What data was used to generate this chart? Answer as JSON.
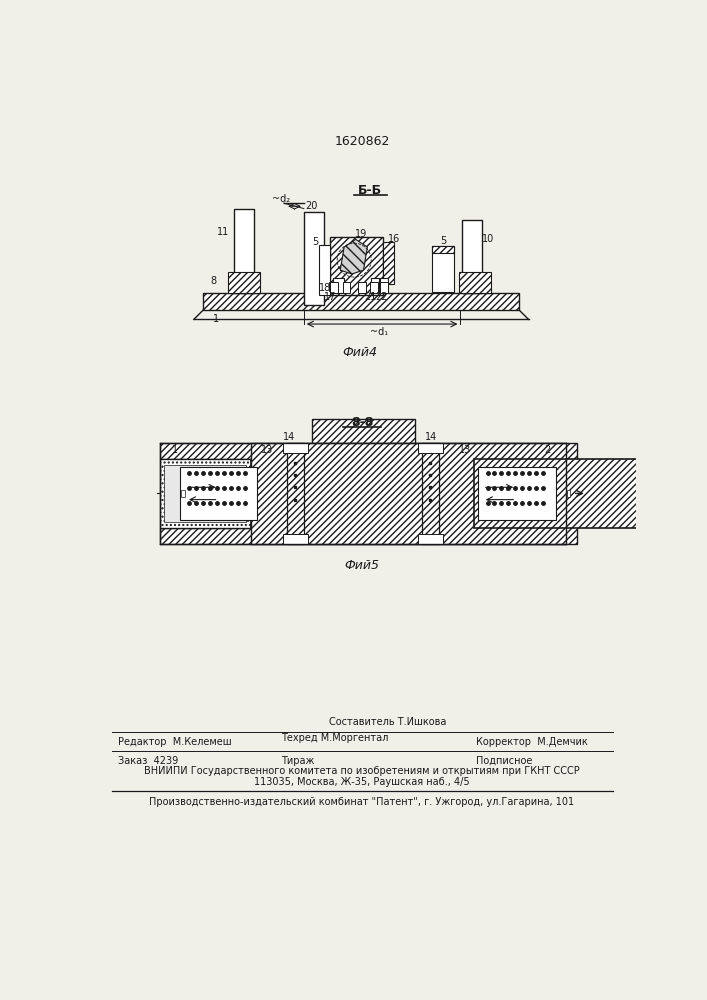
{
  "bg_color": "#f0efe8",
  "patent_number": "1620862",
  "fig4_title": "Б-Б",
  "fig4_caption": "Фий4",
  "fig5_title": "8-8",
  "fig5_caption": "Фий5",
  "footer_sestavitel": "Составитель Т.Ишкова",
  "footer_editor": "Редактор  М.Келемеш",
  "footer_tech": "Техред М.Моргентал",
  "footer_corrector": "Корректор  М.Демчик",
  "footer_order": "Заказ  4239",
  "footer_tirazh": "Тираж",
  "footer_podpisnoe": "Подписное",
  "footer_vnipi": "ВНИИПИ Государственного комитета по изобретениям и открытиям при ГКНТ СССР",
  "footer_address": "113035, Москва, Ж-35, Раушская наб., 4/5",
  "footer_factory": "Производственно-издательский комбинат \"Патент\", г. Ужгород, ул.Гагарина, 101",
  "lc": "#1a1a1a"
}
